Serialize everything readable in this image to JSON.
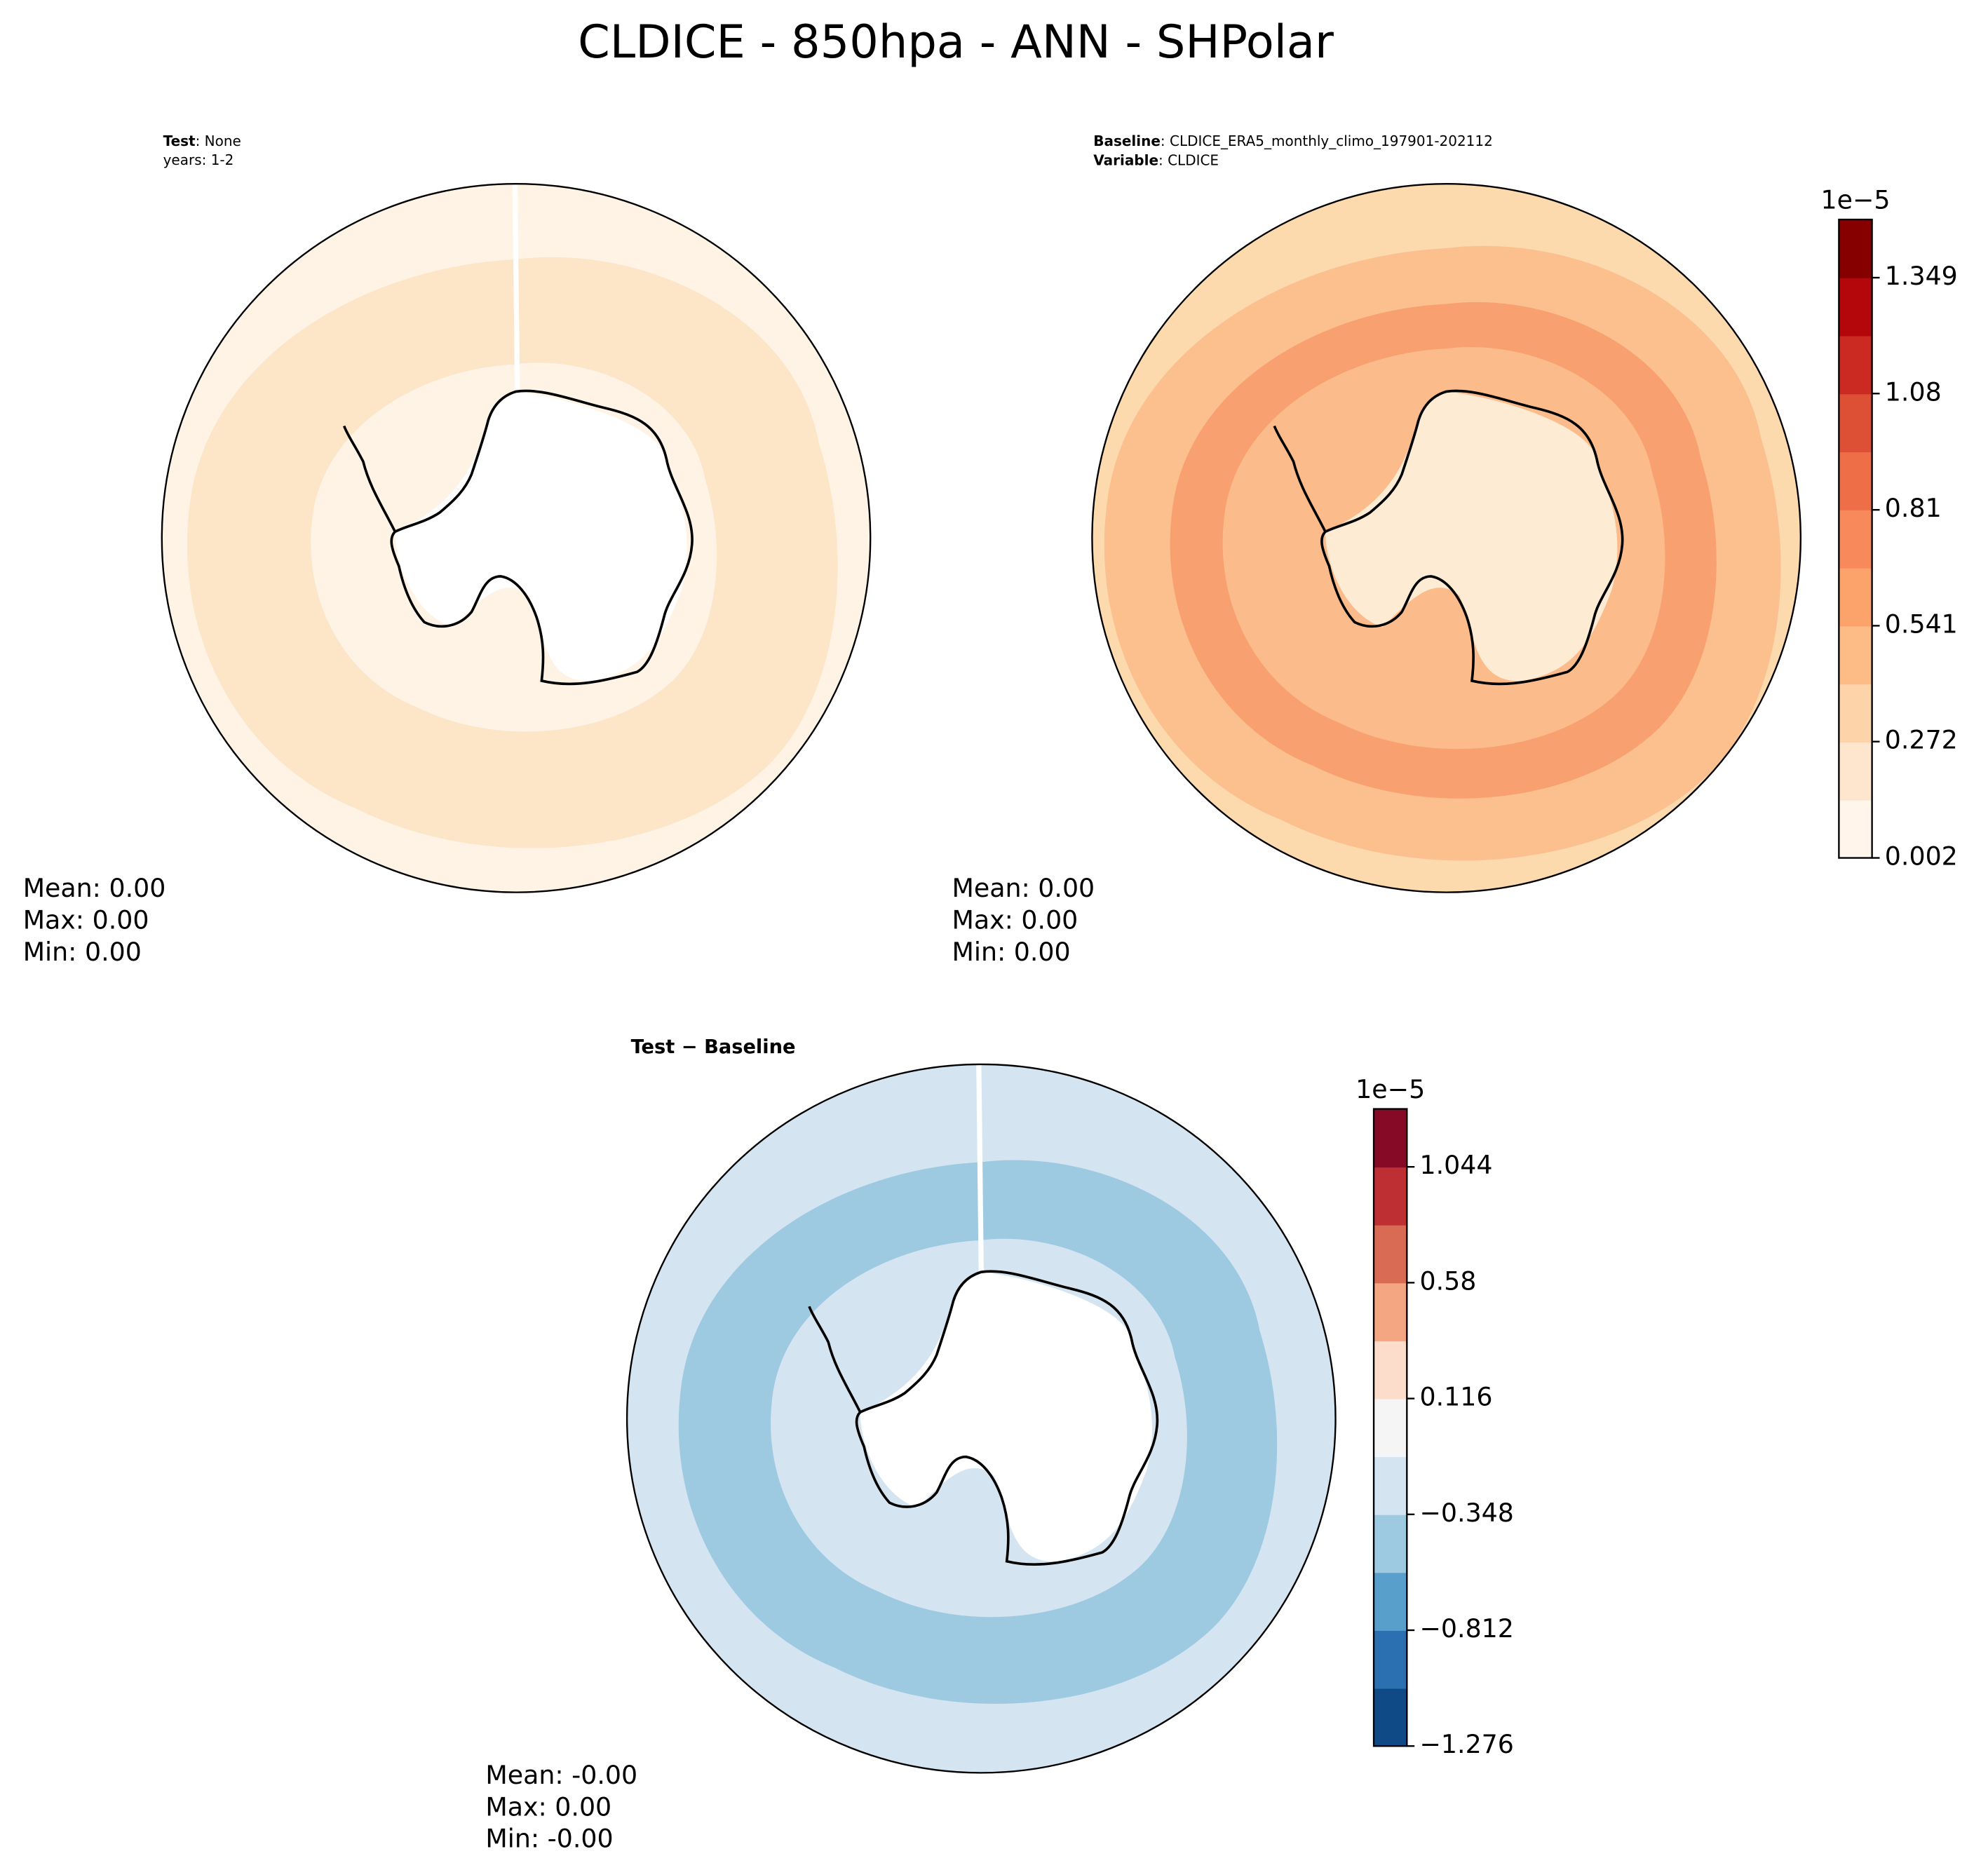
{
  "title": "CLDICE - 850hpa - ANN - SHPolar",
  "panels": [
    {
      "label": "Test",
      "text": ": None",
      "subtext": "years: 1-2",
      "stats": [
        "Mean:  0.00",
        "Max:  0.00",
        "Min:  0.00"
      ]
    },
    {
      "label": "Baseline",
      "text": ": CLDICE_ERA5_monthly_climo_197901-202112",
      "label2": "Variable",
      "text2": ": CLDICE",
      "stats": [
        "Mean:  0.00",
        "Max:  0.00",
        "Min:  0.00"
      ],
      "colorbar": {
        "offset_label": "1e−5",
        "clim": [
          0.002,
          1.484
        ],
        "ticks": [
          0.002,
          0.272,
          0.541,
          0.81,
          1.08,
          1.349
        ],
        "colors": [
          "#fff5eb",
          "#fee6ce",
          "#fdd3a9",
          "#fdbb86",
          "#fca26b",
          "#f7895a",
          "#ee6e47",
          "#de5036",
          "#cb2a22",
          "#b3070b",
          "#870000"
        ]
      }
    },
    {
      "title": "Test − Baseline",
      "stats": [
        "Mean: -0.00",
        "Max:  0.00",
        "Min: -0.00"
      ],
      "colorbar": {
        "offset_label": "1e−5",
        "clim": [
          -1.276,
          1.276
        ],
        "ticks": [
          {
            "value": -1.276,
            "label": "−1.276"
          },
          {
            "value": -0.812,
            "label": "−0.812"
          },
          {
            "value": -0.348,
            "label": "−0.348"
          },
          0.116,
          0.58,
          1.044
        ],
        "colors": [
          "#0f4a86",
          "#2b70b1",
          "#58a0cb",
          "#9ecae1",
          "#d4e5f1",
          "#f5f5f5",
          "#fcdcca",
          "#f4a582",
          "#d96b55",
          "#bd2f33",
          "#860a25"
        ]
      }
    }
  ]
}
